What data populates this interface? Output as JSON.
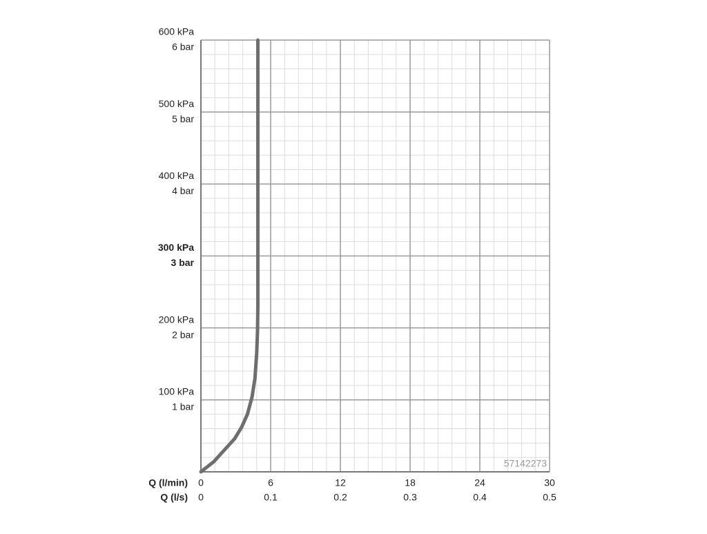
{
  "chart_data": {
    "type": "line",
    "x_title": "Q (l/min)",
    "x2_title": "Q (l/s)",
    "xlim": [
      0,
      30
    ],
    "xticks": [
      0,
      6,
      12,
      18,
      24,
      30
    ],
    "x2lim": [
      0,
      0.5
    ],
    "x2ticks": [
      0,
      0.1,
      0.2,
      0.3,
      0.4,
      0.5
    ],
    "ylim": [
      0,
      600
    ],
    "yticks": [
      {
        "value": 100,
        "label": "100 kPa"
      },
      {
        "value": 200,
        "label": "200 kPa"
      },
      {
        "value": 300,
        "label": "300 kPa"
      },
      {
        "value": 400,
        "label": "400 kPa"
      },
      {
        "value": 500,
        "label": "500 kPa"
      },
      {
        "value": 600,
        "label": "600 kPa"
      }
    ],
    "y2lim": [
      0,
      6
    ],
    "y2ticks": [
      {
        "value": 1,
        "label": "1 bar"
      },
      {
        "value": 2,
        "label": "2 bar"
      },
      {
        "value": 3,
        "label": "3 bar"
      },
      {
        "value": 4,
        "label": "4 bar"
      },
      {
        "value": 5,
        "label": "5 bar"
      },
      {
        "value": 6,
        "label": "6 bar"
      }
    ],
    "emphasized_ytick": 300,
    "minor_grid": {
      "x": 1.2,
      "y": 20
    },
    "grid": true,
    "watermark": "57142273",
    "series": [
      {
        "color": "#6e6e6e",
        "x": [
          0,
          1.1,
          2.0,
          2.9,
          3.5,
          4.0,
          4.4,
          4.65,
          4.8,
          4.87,
          4.9,
          4.9
        ],
        "values": [
          0,
          14,
          30,
          46,
          62,
          80,
          104,
          130,
          165,
          195,
          230,
          600
        ]
      }
    ]
  }
}
